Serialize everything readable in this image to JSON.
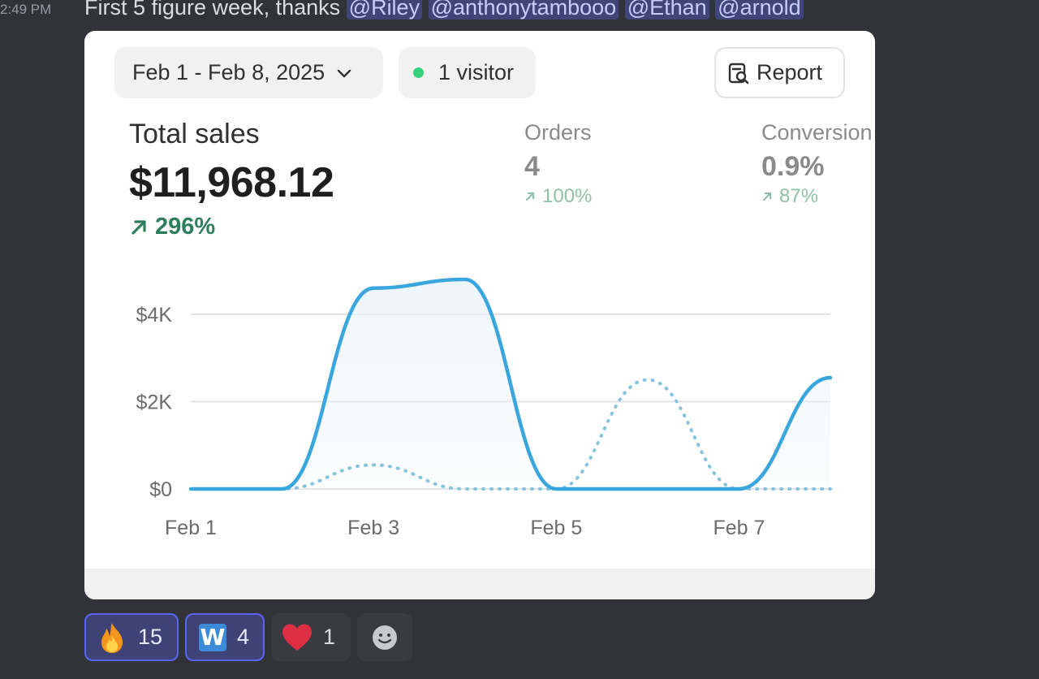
{
  "message": {
    "timestamp": "2:49 PM",
    "text": "First 5 figure week, thanks",
    "mentions": [
      "@Riley",
      "@anthonytambooo",
      "@Ethan",
      "@arnold"
    ]
  },
  "card": {
    "date_range": "Feb 1 - Feb 8, 2025",
    "visitors": "1 visitor",
    "report_label": "Report",
    "total_sales": {
      "label": "Total sales",
      "value": "$11,968.12",
      "change": "296%"
    },
    "orders": {
      "label": "Orders",
      "value": "4",
      "change": "100%"
    },
    "conversion": {
      "label": "Conversion",
      "value": "0.9%",
      "change": "87%"
    }
  },
  "chart_data": {
    "type": "line",
    "x": [
      "Feb 1",
      "Feb 2",
      "Feb 3",
      "Feb 4",
      "Feb 5",
      "Feb 6",
      "Feb 7",
      "Feb 8"
    ],
    "x_tick_labels": [
      "Feb 1",
      "Feb 3",
      "Feb 5",
      "Feb 7"
    ],
    "y_tick_labels": [
      "$0",
      "$2K",
      "$4K"
    ],
    "ylim": [
      0,
      4400
    ],
    "series": [
      {
        "style": "solid",
        "color": "#3aa6de",
        "values": [
          0,
          0,
          4600,
          4800,
          0,
          0,
          0,
          2550
        ]
      },
      {
        "style": "dotted",
        "color": "#86c3dd",
        "values": [
          0,
          0,
          550,
          0,
          0,
          2500,
          0,
          0
        ]
      }
    ],
    "grid": true,
    "legend": false
  },
  "reactions": [
    {
      "emoji": "fire",
      "count": "15",
      "active": true
    },
    {
      "emoji": "w-tile",
      "label": "W",
      "count": "4",
      "active": true
    },
    {
      "emoji": "red-heart",
      "count": "1",
      "active": false
    }
  ],
  "colors": {
    "background": "#323339",
    "mention_bg": "#444a7a",
    "positive_change": "#2e7d5b",
    "line": "#3aa6de"
  }
}
